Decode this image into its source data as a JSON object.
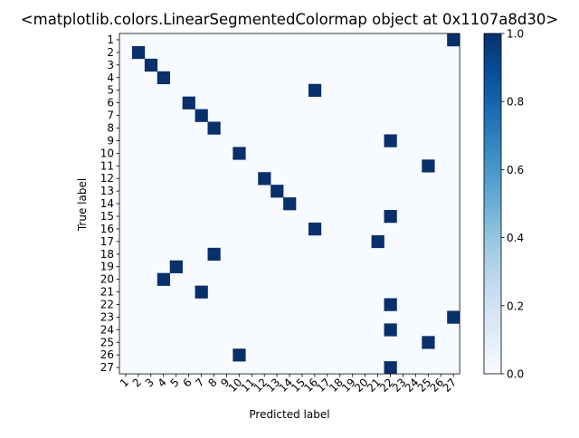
{
  "chart_data": {
    "type": "heatmap",
    "title": "<matplotlib.colors.LinearSegmentedColormap object at 0x1107a8d30>",
    "xlabel": "Predicted label",
    "ylabel": "True label",
    "x_ticks": [
      "1",
      "2",
      "3",
      "4",
      "5",
      "6",
      "7",
      "8",
      "9",
      "10",
      "11",
      "12",
      "13",
      "14",
      "15",
      "16",
      "17",
      "18",
      "19",
      "20",
      "21",
      "22",
      "23",
      "24",
      "25",
      "26",
      "27"
    ],
    "y_ticks": [
      "1",
      "2",
      "3",
      "4",
      "5",
      "6",
      "7",
      "8",
      "9",
      "10",
      "11",
      "12",
      "13",
      "14",
      "15",
      "16",
      "17",
      "18",
      "19",
      "20",
      "21",
      "22",
      "23",
      "24",
      "25",
      "26",
      "27"
    ],
    "colorbar": {
      "range": [
        0.0,
        1.0
      ],
      "ticks": [
        "0.0",
        "0.2",
        "0.4",
        "0.6",
        "0.8",
        "1.0"
      ],
      "cmap": "Blues"
    },
    "colors": {
      "low": "#f7fbff",
      "high": "#08306b"
    },
    "cells": [
      {
        "true": 1,
        "pred": 27,
        "value": 1.0
      },
      {
        "true": 2,
        "pred": 2,
        "value": 1.0
      },
      {
        "true": 3,
        "pred": 3,
        "value": 1.0
      },
      {
        "true": 4,
        "pred": 4,
        "value": 1.0
      },
      {
        "true": 5,
        "pred": 16,
        "value": 1.0
      },
      {
        "true": 6,
        "pred": 6,
        "value": 1.0
      },
      {
        "true": 7,
        "pred": 7,
        "value": 1.0
      },
      {
        "true": 8,
        "pred": 8,
        "value": 1.0
      },
      {
        "true": 9,
        "pred": 22,
        "value": 1.0
      },
      {
        "true": 10,
        "pred": 10,
        "value": 1.0
      },
      {
        "true": 11,
        "pred": 25,
        "value": 1.0
      },
      {
        "true": 12,
        "pred": 12,
        "value": 1.0
      },
      {
        "true": 13,
        "pred": 13,
        "value": 1.0
      },
      {
        "true": 14,
        "pred": 14,
        "value": 1.0
      },
      {
        "true": 15,
        "pred": 22,
        "value": 1.0
      },
      {
        "true": 16,
        "pred": 16,
        "value": 1.0
      },
      {
        "true": 17,
        "pred": 21,
        "value": 1.0
      },
      {
        "true": 18,
        "pred": 8,
        "value": 1.0
      },
      {
        "true": 19,
        "pred": 5,
        "value": 1.0
      },
      {
        "true": 20,
        "pred": 4,
        "value": 1.0
      },
      {
        "true": 21,
        "pred": 7,
        "value": 1.0
      },
      {
        "true": 22,
        "pred": 22,
        "value": 1.0
      },
      {
        "true": 23,
        "pred": 27,
        "value": 1.0
      },
      {
        "true": 24,
        "pred": 22,
        "value": 1.0
      },
      {
        "true": 25,
        "pred": 25,
        "value": 1.0
      },
      {
        "true": 26,
        "pred": 10,
        "value": 1.0
      },
      {
        "true": 27,
        "pred": 22,
        "value": 1.0
      }
    ]
  }
}
